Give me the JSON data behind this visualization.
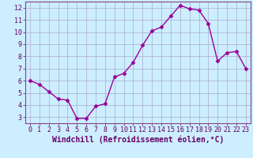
{
  "x": [
    0,
    1,
    2,
    3,
    4,
    5,
    6,
    7,
    8,
    9,
    10,
    11,
    12,
    13,
    14,
    15,
    16,
    17,
    18,
    19,
    20,
    21,
    22,
    23
  ],
  "y": [
    6.0,
    5.7,
    5.1,
    4.5,
    4.4,
    2.9,
    2.9,
    3.9,
    4.1,
    6.3,
    6.6,
    7.5,
    8.9,
    10.1,
    10.4,
    11.3,
    12.2,
    11.9,
    11.8,
    10.7,
    7.6,
    8.3,
    8.4,
    7.0
  ],
  "line_color": "#990099",
  "marker": "D",
  "marker_size": 2.5,
  "bg_color": "#cceeff",
  "grid_color": "#aaaacc",
  "xlabel": "Windchill (Refroidissement éolien,°C)",
  "xlim": [
    -0.5,
    23.5
  ],
  "ylim": [
    2.5,
    12.5
  ],
  "yticks": [
    3,
    4,
    5,
    6,
    7,
    8,
    9,
    10,
    11,
    12
  ],
  "xticks": [
    0,
    1,
    2,
    3,
    4,
    5,
    6,
    7,
    8,
    9,
    10,
    11,
    12,
    13,
    14,
    15,
    16,
    17,
    18,
    19,
    20,
    21,
    22,
    23
  ],
  "xlabel_fontsize": 7,
  "tick_fontsize": 6,
  "line_width": 1.0,
  "spine_color": "#884488",
  "label_color": "#660066"
}
